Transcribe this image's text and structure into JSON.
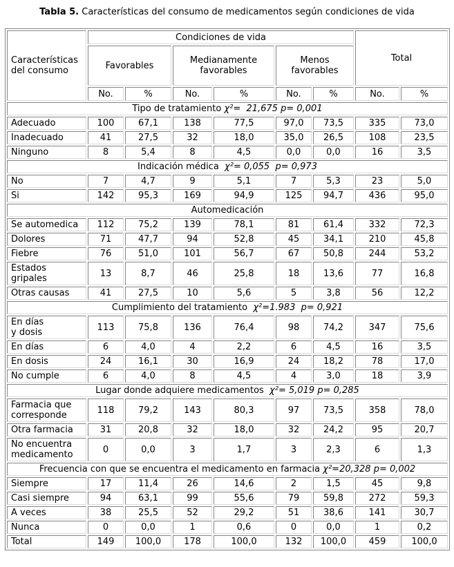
{
  "title": {
    "bold": "Tabla 5.",
    "rest": " Características del consumo de medicamentos según condiciones de vida"
  },
  "colors": {
    "background": "#ffffff",
    "text": "#000000",
    "border_dark": "#848484",
    "border_light": "#d9d9d9"
  },
  "table": {
    "header": {
      "col0": "Características\ndel consumo",
      "group_title": "Condiciones de vida",
      "groups": [
        "Favorables",
        "Medianamente\nfavorables",
        "Menos\nfavorables"
      ],
      "total": "Total",
      "sub": [
        "No.",
        "%",
        "No.",
        "%",
        "No.",
        "%",
        "No.",
        "%"
      ]
    },
    "sections": [
      {
        "title": "Tipo de tratamiento",
        "stats": " χ²=  21,675 p= 0,001",
        "rows": [
          {
            "label": "Adecuado",
            "values": [
              "100",
              "67,1",
              "138",
              "77,5",
              "97,0",
              "73,5",
              "335",
              "73,0"
            ]
          },
          {
            "label": "Inadecuado",
            "values": [
              "41",
              "27,5",
              "32",
              "18,0",
              "35,0",
              "26,5",
              "108",
              "23,5"
            ]
          },
          {
            "label": "Ninguno",
            "values": [
              "8",
              "5,4",
              "8",
              "4,5",
              "0,0",
              "0,0",
              "16",
              "3,5"
            ]
          }
        ]
      },
      {
        "title": "Indicación médica",
        "stats": "  χ²= 0,055  p= 0,973",
        "rows": [
          {
            "label": "No",
            "values": [
              "7",
              "4,7",
              "9",
              "5,1",
              "7",
              "5,3",
              "23",
              "5,0"
            ]
          },
          {
            "label": "Si",
            "values": [
              "142",
              "95,3",
              "169",
              "94,9",
              "125",
              "94,7",
              "436",
              "95,0"
            ]
          }
        ]
      },
      {
        "title": "Automedicación",
        "stats": "",
        "rows": [
          {
            "label": "Se automedica",
            "values": [
              "112",
              "75,2",
              "139",
              "78,1",
              "81",
              "61,4",
              "332",
              "72,3"
            ]
          },
          {
            "label": "Dolores",
            "values": [
              "71",
              "47,7",
              "94",
              "52,8",
              "45",
              "34,1",
              "210",
              "45,8"
            ]
          },
          {
            "label": "Fiebre",
            "values": [
              "76",
              "51,0",
              "101",
              "56,7",
              "67",
              "50,8",
              "244",
              "53,2"
            ]
          },
          {
            "label": "Estados\ngripales",
            "values": [
              "13",
              "8,7",
              "46",
              "25,8",
              "18",
              "13,6",
              "77",
              "16,8"
            ]
          },
          {
            "label": "Otras causas",
            "values": [
              "41",
              "27,5",
              "10",
              "5,6",
              "5",
              "3,8",
              "56",
              "12,2"
            ]
          }
        ]
      },
      {
        "title": "Cumplimiento del tratamiento",
        "stats": "  χ²=1.983  p= 0,921",
        "rows": [
          {
            "label": "En días\ny dosis",
            "values": [
              "113",
              "75,8",
              "136",
              "76,4",
              "98",
              "74,2",
              "347",
              "75,6"
            ]
          },
          {
            "label": "En días",
            "values": [
              "6",
              "4,0",
              "4",
              "2,2",
              "6",
              "4,5",
              "16",
              "3,5"
            ]
          },
          {
            "label": "En dosis",
            "values": [
              "24",
              "16,1",
              "30",
              "16,9",
              "24",
              "18,2",
              "78",
              "17,0"
            ]
          },
          {
            "label": "No cumple",
            "values": [
              "6",
              "4,0",
              "8",
              "4,5",
              "4",
              "3,0",
              "18",
              "3,9"
            ]
          }
        ]
      },
      {
        "title": "Lugar donde adquiere medicamentos",
        "stats": "  χ²= 5,019 p= 0,285",
        "rows": [
          {
            "label": "Farmacia que\ncorresponde",
            "values": [
              "118",
              "79,2",
              "143",
              "80,3",
              "97",
              "73,5",
              "358",
              "78,0"
            ]
          },
          {
            "label": "Otra farmacia",
            "values": [
              "31",
              "20,8",
              "32",
              "18,0",
              "32",
              "24,2",
              "95",
              "20,7"
            ]
          },
          {
            "label": "No encuentra\nmedicamento",
            "values": [
              "0",
              "0,0",
              "3",
              "1,7",
              "3",
              "2,3",
              "6",
              "1,3"
            ]
          }
        ]
      },
      {
        "title": "Frecuencia con que se encuentra el medicamento en farmacia",
        "stats": " χ²=20,328 p= 0,002",
        "rows": [
          {
            "label": "Siempre",
            "values": [
              "17",
              "11,4",
              "26",
              "14,6",
              "2",
              "1,5",
              "45",
              "9,8"
            ]
          },
          {
            "label": "Casi siempre",
            "values": [
              "94",
              "63,1",
              "99",
              "55,6",
              "79",
              "59,8",
              "272",
              "59,3"
            ]
          },
          {
            "label": "A veces",
            "values": [
              "38",
              "25,5",
              "52",
              "29,2",
              "51",
              "38,6",
              "141",
              "30,7"
            ]
          },
          {
            "label": "Nunca",
            "values": [
              "0",
              "0,0",
              "1",
              "0,6",
              "0",
              "0,0",
              "1",
              "0,2"
            ]
          },
          {
            "label": "Total",
            "values": [
              "149",
              "100,0",
              "178",
              "100,0",
              "132",
              "100,0",
              "459",
              "100,0"
            ]
          }
        ]
      }
    ]
  }
}
